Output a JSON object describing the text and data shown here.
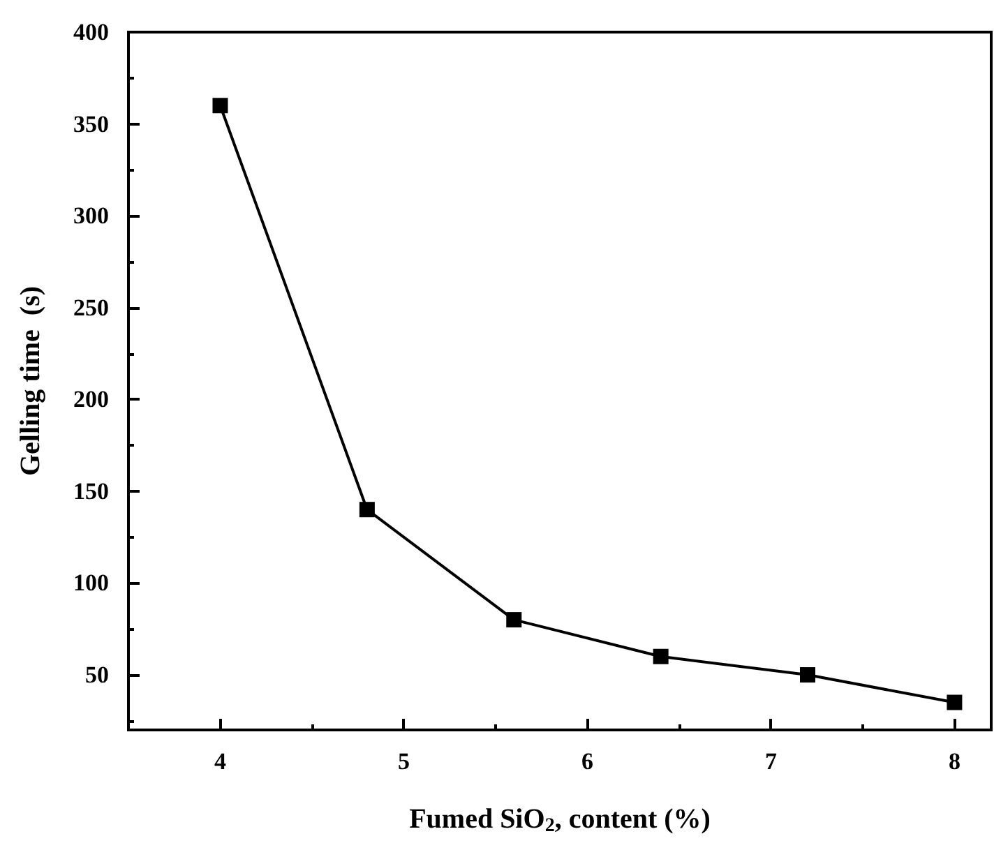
{
  "chart_data": {
    "type": "line",
    "xlabel": "Fumed SiO$_{2}$, content (%)",
    "ylabel": "Gelling time  (s)",
    "x": [
      4,
      4.8,
      5.6,
      6.4,
      7.2,
      8
    ],
    "series": [
      {
        "color": "#000000",
        "values": [
          360,
          140,
          80,
          60,
          50,
          35
        ]
      }
    ],
    "xlim": [
      3.5,
      8.2
    ],
    "ylim": [
      20,
      400
    ],
    "xticks": [
      4,
      {
        "value": 4.5,
        "label": null
      },
      5,
      {
        "value": 5.5,
        "label": null
      },
      6,
      {
        "value": 6.5,
        "label": null
      },
      7,
      {
        "value": 7.5,
        "label": null
      },
      8
    ],
    "yticks": [
      {
        "value": 25,
        "label": null
      },
      50,
      {
        "value": 75,
        "label": null
      },
      100,
      {
        "value": 125,
        "label": null
      },
      150,
      {
        "value": 175,
        "label": null
      },
      200,
      {
        "value": 225,
        "label": null
      },
      250,
      {
        "value": 275,
        "label": null
      },
      300,
      {
        "value": 325,
        "label": null
      },
      350,
      {
        "value": 375,
        "label": null
      },
      400
    ],
    "marker": "square",
    "line_style": "solid"
  }
}
